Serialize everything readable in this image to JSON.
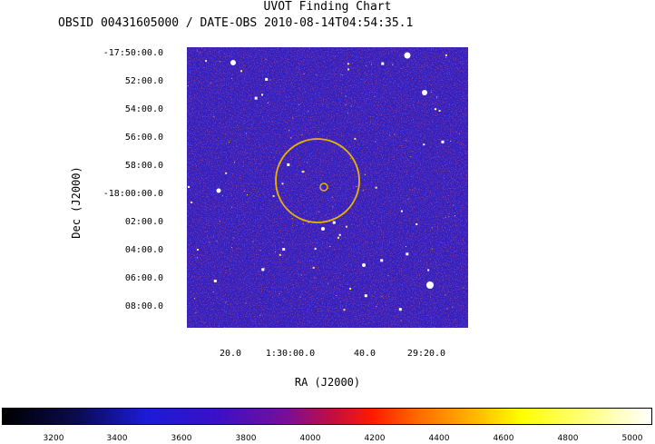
{
  "header": {
    "title": "UVOT Finding Chart",
    "subtitle": "OBSID 00431605000 / DATE-OBS 2010-08-14T04:54:35.1"
  },
  "axes": {
    "xlabel": "RA (J2000)",
    "ylabel": "Dec (J2000)",
    "dec_ticks": [
      "-17:50:00.0",
      "52:00.0",
      "54:00.0",
      "56:00.0",
      "58:00.0",
      "-18:00:00.0",
      "02:00.0",
      "04:00.0",
      "06:00.0",
      "08:00.0"
    ],
    "ra_ticks": [
      "20.0",
      "1:30:00.0",
      "40.0",
      "29:20.0"
    ]
  },
  "colorbar": {
    "ticks": [
      "3200",
      "3400",
      "3600",
      "3800",
      "4000",
      "4200",
      "4400",
      "4600",
      "4800",
      "5000"
    ]
  },
  "colors": {
    "circle": "#e8b400",
    "background_noise_low": "#1a1ad0",
    "background_noise_high": "#c81020"
  }
}
